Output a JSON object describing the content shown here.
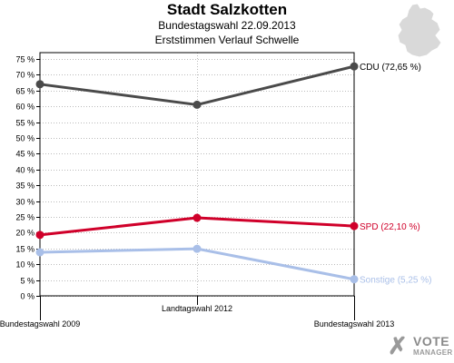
{
  "header": {
    "title": "Stadt Salzkotten",
    "subtitle1": "Bundestagswahl 22.09.2013",
    "subtitle2": "Erststimmen Verlauf Schwelle"
  },
  "logo": {
    "line1": "VOTE",
    "line2": "MANAGER",
    "mark": "✗"
  },
  "chart_data": {
    "type": "line",
    "x": [
      "Bundestagswahl 2009",
      "Landtagswahl 2012",
      "Bundestagswahl 2013"
    ],
    "ylim": [
      0,
      77
    ],
    "yticks": [
      0,
      5,
      10,
      15,
      20,
      25,
      30,
      35,
      40,
      45,
      50,
      55,
      60,
      65,
      70,
      75
    ],
    "ytick_labels": [
      "0 %",
      "5 %",
      "10 %",
      "15 %",
      "20 %",
      "25 %",
      "30 %",
      "35 %",
      "40 %",
      "45 %",
      "50 %",
      "55 %",
      "60 %",
      "65 %",
      "70 %",
      "75 %"
    ],
    "grid": true,
    "series": [
      {
        "name": "CDU",
        "end_label": "CDU (72,65 %)",
        "color": "#4a4a4a",
        "values": [
          67.0,
          60.5,
          72.65
        ]
      },
      {
        "name": "SPD",
        "end_label": "SPD (22,10 %)",
        "color": "#d0002a",
        "values": [
          19.3,
          24.7,
          22.1
        ]
      },
      {
        "name": "Sonstige",
        "end_label": "Sonstige (5,25 %)",
        "color": "#a9bfe8",
        "values": [
          13.8,
          14.9,
          5.25
        ]
      }
    ]
  }
}
